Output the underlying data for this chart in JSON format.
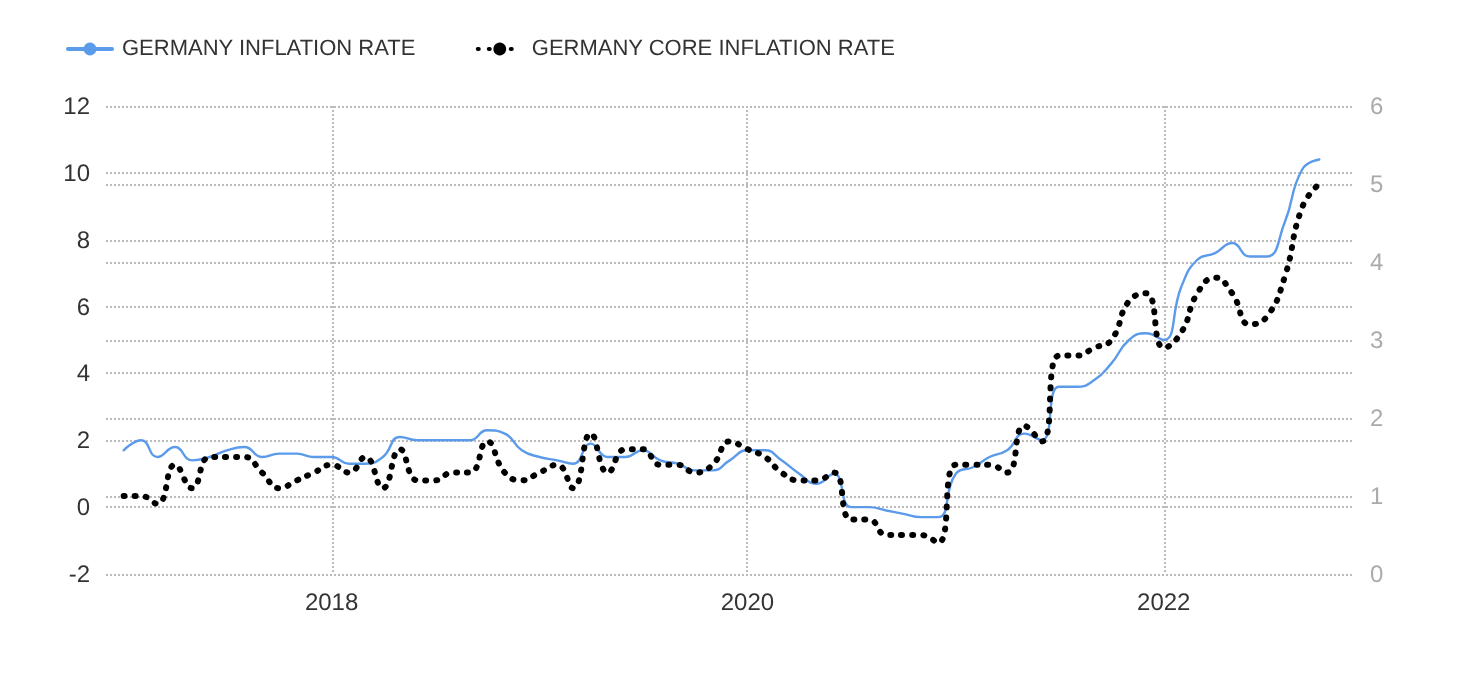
{
  "chart_data": {
    "type": "line",
    "x": [
      "2017-01",
      "2017-02",
      "2017-03",
      "2017-04",
      "2017-05",
      "2017-06",
      "2017-07",
      "2017-08",
      "2017-09",
      "2017-10",
      "2017-11",
      "2017-12",
      "2018-01",
      "2018-02",
      "2018-03",
      "2018-04",
      "2018-05",
      "2018-06",
      "2018-07",
      "2018-08",
      "2018-09",
      "2018-10",
      "2018-11",
      "2018-12",
      "2019-01",
      "2019-02",
      "2019-03",
      "2019-04",
      "2019-05",
      "2019-06",
      "2019-07",
      "2019-08",
      "2019-09",
      "2019-10",
      "2019-11",
      "2019-12",
      "2020-01",
      "2020-02",
      "2020-03",
      "2020-04",
      "2020-05",
      "2020-06",
      "2020-07",
      "2020-08",
      "2020-09",
      "2020-10",
      "2020-11",
      "2020-12",
      "2021-01",
      "2021-02",
      "2021-03",
      "2021-04",
      "2021-05",
      "2021-06",
      "2021-07",
      "2021-08",
      "2021-09",
      "2021-10",
      "2021-11",
      "2021-12",
      "2022-01",
      "2022-02",
      "2022-03",
      "2022-04",
      "2022-05",
      "2022-06",
      "2022-07",
      "2022-08",
      "2022-09",
      "2022-10"
    ],
    "series": [
      {
        "name": "GERMANY INFLATION RATE",
        "color": "#5b9bea",
        "line_style": "solid",
        "values": [
          1.7,
          2.0,
          1.5,
          1.8,
          1.4,
          1.5,
          1.7,
          1.8,
          1.5,
          1.6,
          1.6,
          1.5,
          1.5,
          1.3,
          1.3,
          1.5,
          2.1,
          2.0,
          2.0,
          2.0,
          2.0,
          2.3,
          2.2,
          1.7,
          1.5,
          1.4,
          1.3,
          1.9,
          1.5,
          1.5,
          1.7,
          1.4,
          1.3,
          1.1,
          1.1,
          1.4,
          1.7,
          1.7,
          1.4,
          1.0,
          0.7,
          1.0,
          0.0,
          0.0,
          -0.1,
          -0.2,
          -0.3,
          -0.3,
          1.0,
          1.2,
          1.5,
          1.7,
          2.2,
          2.0,
          3.6,
          3.6,
          3.8,
          4.3,
          5.0,
          5.2,
          5.0,
          6.6,
          7.4,
          7.6,
          7.9,
          7.5,
          7.5,
          8.5,
          10.1,
          10.4
        ]
      },
      {
        "name": "GERMANY CORE INFLATION RATE",
        "color": "#000000",
        "line_style": "dotted",
        "axis": "y2",
        "values": [
          1.0,
          1.0,
          0.9,
          1.4,
          1.1,
          1.5,
          1.5,
          1.5,
          1.3,
          1.1,
          1.2,
          1.3,
          1.4,
          1.3,
          1.5,
          1.1,
          1.6,
          1.2,
          1.2,
          1.3,
          1.3,
          1.7,
          1.3,
          1.2,
          1.3,
          1.4,
          1.1,
          1.8,
          1.3,
          1.6,
          1.6,
          1.4,
          1.4,
          1.3,
          1.4,
          1.7,
          1.6,
          1.5,
          1.3,
          1.2,
          1.2,
          1.3,
          0.7,
          0.7,
          0.5,
          0.5,
          0.5,
          0.4,
          1.4,
          1.4,
          1.4,
          1.3,
          1.9,
          1.7,
          2.8,
          2.8,
          2.9,
          3.0,
          3.5,
          3.6,
          2.9,
          3.1,
          3.6,
          3.8,
          3.6,
          3.2,
          3.3,
          3.8,
          4.7,
          5.0
        ]
      }
    ],
    "xlim": [
      "2016-12",
      "2022-12"
    ],
    "xticks": [
      {
        "value": "2018",
        "label": "2018"
      },
      {
        "value": "2020",
        "label": "2020"
      },
      {
        "value": "2022",
        "label": "2022"
      }
    ],
    "ylim": [
      -2,
      12
    ],
    "yticks": [
      -2,
      0,
      2,
      4,
      6,
      8,
      10,
      12
    ],
    "y2lim": [
      0,
      6
    ],
    "y2ticks": [
      0,
      1,
      2,
      3,
      4,
      5,
      6
    ],
    "grid": true,
    "legend": "top left",
    "marker": "none"
  }
}
